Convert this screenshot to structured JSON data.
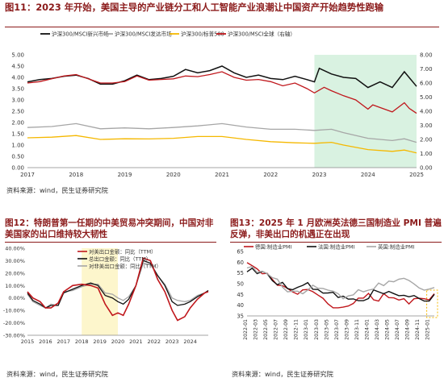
{
  "panels": [
    {
      "title": "图11：2023 年开始，美国主导的产业链分工和人工智能产业浪潮让中国资产开始趋势性跑输",
      "source": "资料来源：wind，民生证券研究院"
    },
    {
      "title": "图12：特朗普第一任期的中美贸易冲突期间，中国对非美国家的出口维持较大韧性",
      "source": "资料来源：wind，民生证券研究院"
    },
    {
      "title": "图13：2025 年 1 月欧洲英法德三国制造业 PMI 普遍反弹，非美出口的机遇正在出现",
      "source": "资料来源：wind，民生证券研究院"
    }
  ],
  "colors": {
    "red": "#c0171c",
    "black": "#111111",
    "gray": "#a6a6a6",
    "yellow": "#f5b800",
    "green_shade": "#d9f2e1",
    "yellow_shade": "#fdf6cc",
    "yellow_box": "#f5b800"
  },
  "chart_data": [
    {
      "type": "line",
      "title": "图11：2023 年开始，美国主导的产业链分工和人工智能产业浪潮让中国资产开始趋势性跑输",
      "x_ticks": [
        "2017",
        "2018",
        "2019",
        "2020",
        "2021",
        "2022",
        "2023",
        "2024",
        "2025"
      ],
      "ylim": [
        0,
        5
      ],
      "y_ticks": [
        "0.00",
        "0.50",
        "1.00",
        "1.50",
        "2.00",
        "2.50",
        "3.00",
        "3.50",
        "4.00",
        "4.50",
        "5.00"
      ],
      "y2lim": [
        0,
        8
      ],
      "y2_ticks": [
        "0.00",
        "1.00",
        "2.00",
        "3.00",
        "4.00",
        "5.00",
        "6.00",
        "7.00",
        "8.00"
      ],
      "shaded_region": {
        "from": 2022.9,
        "to": 2025.0
      },
      "legend_position": "top",
      "series": [
        {
          "name": "沪深300/MSCI新兴市场",
          "color_key": "black",
          "axis": "left",
          "x": [
            2017,
            2017.25,
            2017.5,
            2017.75,
            2018,
            2018.25,
            2018.5,
            2018.75,
            2019,
            2019.25,
            2019.5,
            2019.75,
            2020,
            2020.25,
            2020.5,
            2020.75,
            2021,
            2021.25,
            2021.5,
            2021.75,
            2022,
            2022.25,
            2022.5,
            2022.75,
            2022.9,
            2023,
            2023.25,
            2023.5,
            2023.75,
            2024,
            2024.25,
            2024.5,
            2024.75,
            2025
          ],
          "y": [
            3.8,
            3.9,
            3.95,
            4.05,
            4.1,
            3.95,
            3.7,
            3.7,
            3.85,
            4.1,
            3.9,
            3.95,
            4.05,
            4.35,
            4.2,
            4.3,
            4.5,
            4.2,
            4.0,
            4.1,
            3.95,
            3.9,
            4.05,
            3.9,
            3.8,
            4.4,
            4.15,
            4.0,
            3.95,
            3.55,
            3.8,
            3.55,
            4.25,
            3.6
          ]
        },
        {
          "name": "沪深300/MSCI发达市场",
          "color_key": "gray",
          "axis": "left",
          "x": [
            2017,
            2017.5,
            2018,
            2018.5,
            2019,
            2019.5,
            2020,
            2020.5,
            2021,
            2021.5,
            2022,
            2022.5,
            2022.9,
            2023.25,
            2023.5,
            2024,
            2024.5,
            2024.75,
            2025
          ],
          "y": [
            1.78,
            1.82,
            1.95,
            1.72,
            1.76,
            1.72,
            1.78,
            1.85,
            1.95,
            1.8,
            1.7,
            1.7,
            1.65,
            1.7,
            1.55,
            1.3,
            1.2,
            1.28,
            1.12
          ]
        },
        {
          "name": "沪深300/标普500",
          "color_key": "yellow",
          "axis": "left",
          "x": [
            2017,
            2017.5,
            2018,
            2018.5,
            2019,
            2019.5,
            2020,
            2020.5,
            2021,
            2021.5,
            2022,
            2022.5,
            2022.9,
            2023.25,
            2023.5,
            2024,
            2024.5,
            2024.75,
            2025
          ],
          "y": [
            1.32,
            1.35,
            1.42,
            1.25,
            1.28,
            1.27,
            1.3,
            1.38,
            1.38,
            1.25,
            1.15,
            1.1,
            1.08,
            1.12,
            1.0,
            0.8,
            0.72,
            0.78,
            0.65
          ]
        },
        {
          "name": "沪深300/MSCI全球（右轴）",
          "color_key": "red",
          "axis": "right",
          "x": [
            2017,
            2017.25,
            2017.5,
            2017.75,
            2018,
            2018.25,
            2018.5,
            2018.75,
            2019,
            2019.25,
            2019.5,
            2019.75,
            2020,
            2020.25,
            2020.5,
            2020.75,
            2021,
            2021.25,
            2021.5,
            2021.75,
            2022,
            2022.25,
            2022.5,
            2022.75,
            2022.9,
            2023.1,
            2023.25,
            2023.5,
            2023.75,
            2024,
            2024.1,
            2024.3,
            2024.5,
            2024.75,
            2024.85,
            2025
          ],
          "y": [
            6.0,
            6.1,
            6.3,
            6.5,
            6.6,
            6.3,
            6.0,
            6.0,
            6.1,
            6.5,
            6.2,
            6.25,
            6.3,
            6.5,
            6.45,
            6.6,
            6.8,
            6.4,
            6.2,
            6.25,
            6.1,
            5.8,
            6.0,
            5.6,
            5.3,
            5.7,
            5.45,
            5.1,
            4.8,
            4.15,
            4.45,
            4.2,
            3.95,
            4.6,
            4.2,
            3.85
          ]
        }
      ]
    },
    {
      "type": "line",
      "title": "图12：特朗普第一任期的中美贸易冲突期间，中国对非美国家的出口维持较大韧性",
      "x_ticks": [
        "2015",
        "2016",
        "2017",
        "2018",
        "2019",
        "2020",
        "2021",
        "2022",
        "2023",
        "2024"
      ],
      "ylim": [
        -30,
        40
      ],
      "y_ticks": [
        "-30.00%",
        "-20.00%",
        "-10.00%",
        "0.00%",
        "10.00%",
        "20.00%",
        "30.00%",
        "40.00%"
      ],
      "shaded_region": {
        "from": 2018.0,
        "to": 2020.0
      },
      "legend_position": "top-left",
      "series": [
        {
          "name": "对美出口金额：同比（TTM）",
          "color_key": "red",
          "x": [
            2015,
            2015.3,
            2015.7,
            2016,
            2016.3,
            2016.7,
            2017,
            2017.5,
            2018,
            2018.5,
            2018.9,
            2019.3,
            2019.7,
            2020,
            2020.3,
            2020.6,
            2021,
            2021.4,
            2021.8,
            2022.2,
            2022.6,
            2023,
            2023.3,
            2023.7,
            2024,
            2024.4,
            2024.8,
            2025
          ],
          "y": [
            5,
            0,
            -3,
            -8,
            -8,
            -4,
            5,
            10,
            11,
            10,
            8,
            -5,
            -14,
            -12,
            -14,
            -5,
            10,
            32,
            30,
            15,
            5,
            -10,
            -18,
            -15,
            -8,
            -1,
            4,
            5
          ]
        },
        {
          "name": "总出口金额：同比（TTM）",
          "color_key": "black",
          "x": [
            2015,
            2015.3,
            2015.7,
            2016,
            2016.3,
            2016.7,
            2017,
            2017.5,
            2018,
            2018.5,
            2018.9,
            2019.3,
            2019.7,
            2020,
            2020.3,
            2020.6,
            2021,
            2021.4,
            2021.8,
            2022.2,
            2022.6,
            2023,
            2023.3,
            2023.7,
            2024,
            2024.4,
            2024.8,
            2025
          ],
          "y": [
            4,
            -2,
            -5,
            -8,
            -6,
            -6,
            4,
            7,
            10,
            12,
            10,
            2,
            0,
            -3,
            -5,
            -1,
            10,
            30,
            28,
            18,
            10,
            -3,
            -6,
            -5,
            -3,
            1,
            4,
            6
          ]
        },
        {
          "name": "对非美出口金额：同比（TTM）",
          "color_key": "gray",
          "x": [
            2015,
            2015.3,
            2015.7,
            2016,
            2016.3,
            2016.7,
            2017,
            2017.5,
            2018,
            2018.5,
            2018.9,
            2019.3,
            2019.7,
            2020,
            2020.3,
            2020.6,
            2021,
            2021.4,
            2021.8,
            2022.2,
            2022.6,
            2023,
            2023.3,
            2023.7,
            2024,
            2024.4,
            2024.8,
            2025
          ],
          "y": [
            3,
            -3,
            -6,
            -8,
            -5,
            -6,
            5,
            6,
            9,
            11,
            11,
            4,
            3,
            0,
            -2,
            1,
            10,
            28,
            27,
            18,
            11,
            0,
            -2,
            -3,
            -2,
            2,
            4,
            6
          ]
        }
      ]
    },
    {
      "type": "line",
      "title": "图13：2025 年 1 月欧洲英法德三国制造业 PMI 普遍反弹，非美出口的机遇正在出现",
      "x_ticks": [
        "2022-01",
        "2022-03",
        "2022-05",
        "2022-07",
        "2022-09",
        "2022-11",
        "2023-01",
        "2023-03",
        "2023-05",
        "2023-07",
        "2023-09",
        "2023-11",
        "2024-01",
        "2024-03",
        "2024-05",
        "2024-07",
        "2024-09",
        "2024-11",
        "2025-01"
      ],
      "ylim": [
        35,
        65
      ],
      "y_ticks": [
        "35",
        "40",
        "45",
        "50",
        "55",
        "60",
        "65"
      ],
      "highlight_box": {
        "from_index": 35.5,
        "to_index": 37
      },
      "legend_position": "top",
      "series": [
        {
          "name": "德国:制造业PMI",
          "color_key": "red",
          "y": [
            59.8,
            58.4,
            56.9,
            54.6,
            54.8,
            52,
            49.3,
            49.1,
            47.8,
            46.2,
            45.1,
            47.1,
            47.3,
            46.3,
            44.7,
            43.2,
            40.6,
            38.8,
            38.8,
            39.1,
            39.6,
            40.8,
            43.3,
            43.3,
            45.5,
            42.5,
            41.9,
            45.4,
            43.5,
            43.4,
            42.4,
            43,
            40.6,
            43,
            43.2,
            43,
            42.5,
            45.3
          ]
        },
        {
          "name": "法国:制造业PMI",
          "color_key": "black",
          "y": [
            55.5,
            57.2,
            54.7,
            55.7,
            54.6,
            51.4,
            49.5,
            50.6,
            47.7,
            47.2,
            48.3,
            49.2,
            50.5,
            47.4,
            47.3,
            45.6,
            45.7,
            46,
            43.6,
            44.2,
            42.8,
            42.9,
            42.1,
            42.1,
            43.1,
            47.1,
            46.2,
            45.3,
            46.4,
            45.4,
            44.4,
            44.6,
            43.9,
            44.5,
            43.1,
            41.9,
            41.9,
            45
          ]
        },
        {
          "name": "英国:制造业PMI",
          "color_key": "gray",
          "y": [
            57.3,
            58,
            55.2,
            55.8,
            54.6,
            52.8,
            52.1,
            48.4,
            46.2,
            46.5,
            46.5,
            45.3,
            47,
            49.3,
            47.9,
            47.8,
            47,
            46.5,
            45.3,
            43,
            44.3,
            44.8,
            47.2,
            46.2,
            47,
            47.5,
            50.3,
            49.1,
            51.2,
            50.9,
            52.1,
            52.5,
            51.5,
            49.9,
            48,
            47,
            47.5,
            48.2
          ]
        }
      ]
    }
  ]
}
